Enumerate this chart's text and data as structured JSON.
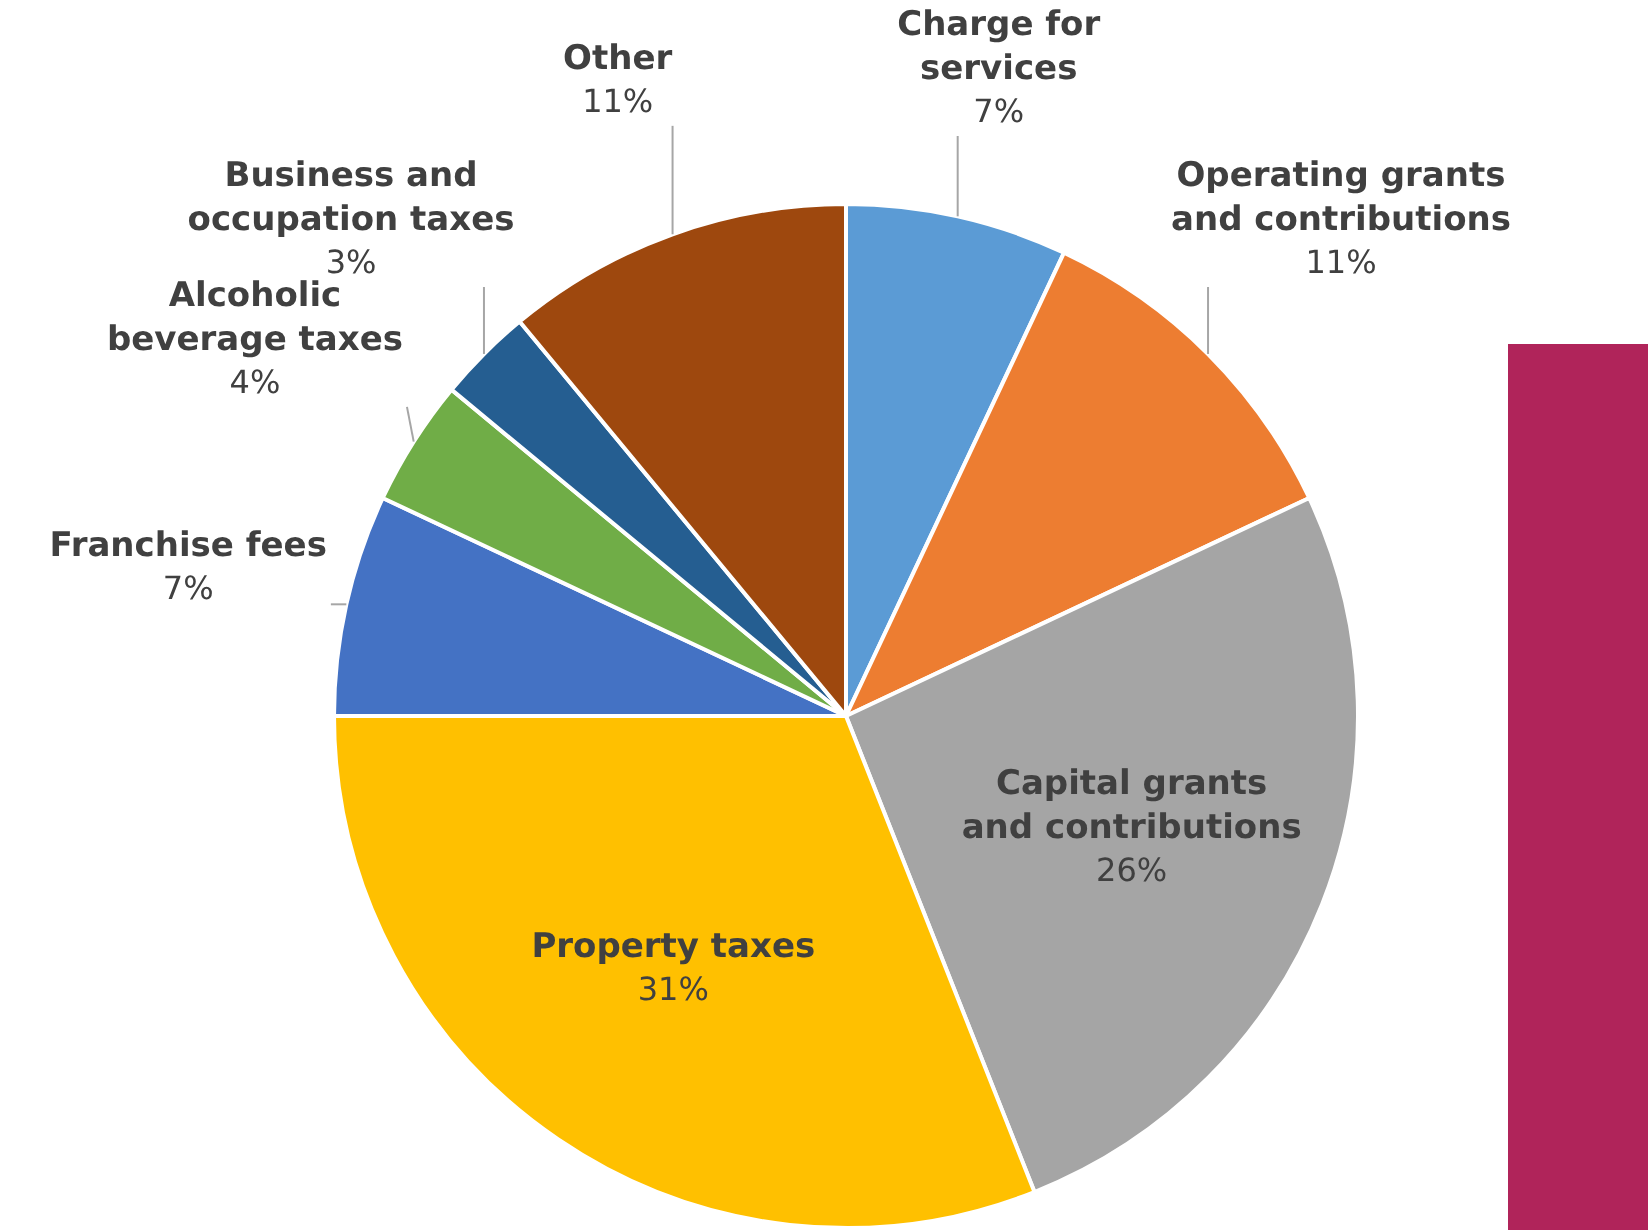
{
  "chart_data": {
    "type": "pie",
    "categories": [
      "Charge for services",
      "Operating grants and contributions",
      "Capital grants and contributions",
      "Property taxes",
      "Franchise fees",
      "Alcoholic beverage taxes",
      "Business and occupation taxes",
      "Other"
    ],
    "values": [
      7,
      11,
      26,
      31,
      7,
      4,
      3,
      11
    ],
    "value_labels": [
      "7%",
      "11%",
      "26%",
      "31%",
      "7%",
      "4%",
      "3%",
      "11%"
    ],
    "colors": [
      "#5b9bd5",
      "#ed7d31",
      "#a5a5a5",
      "#ffc000",
      "#4472c4",
      "#70ad47",
      "#255e91",
      "#9e480e"
    ],
    "legend": false
  }
}
